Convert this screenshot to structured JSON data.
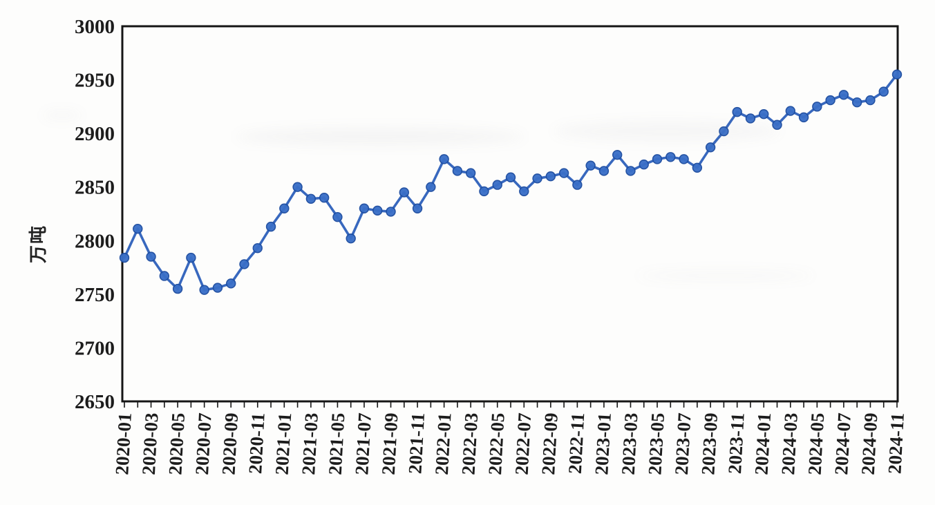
{
  "chart_data": {
    "type": "line",
    "title": "",
    "ylabel": "万吨",
    "xlabel": "",
    "ylim": [
      2650,
      3000
    ],
    "ytick_step": 50,
    "yticks": [
      3000,
      2950,
      2900,
      2850,
      2800,
      2750,
      2700,
      2650
    ],
    "xticks_visible": [
      "2020-01",
      "2020-03",
      "2020-05",
      "2020-07",
      "2020-09",
      "2020-11",
      "2021-01",
      "2021-03",
      "2021-05",
      "2021-07",
      "2021-09",
      "2021-11",
      "2022-01",
      "2022-03",
      "2022-05",
      "2022-07",
      "2022-09",
      "2022-11",
      "2023-01",
      "2023-03",
      "2023-05",
      "2023-07",
      "2023-09",
      "2023-11",
      "2024-01",
      "2024-03",
      "2024-05",
      "2024-07",
      "2024-09",
      "2024-11"
    ],
    "x": [
      "2020-01",
      "2020-02",
      "2020-03",
      "2020-04",
      "2020-05",
      "2020-06",
      "2020-07",
      "2020-08",
      "2020-09",
      "2020-10",
      "2020-11",
      "2020-12",
      "2021-01",
      "2021-02",
      "2021-03",
      "2021-04",
      "2021-05",
      "2021-06",
      "2021-07",
      "2021-08",
      "2021-09",
      "2021-10",
      "2021-11",
      "2021-12",
      "2022-01",
      "2022-02",
      "2022-03",
      "2022-04",
      "2022-05",
      "2022-06",
      "2022-07",
      "2022-08",
      "2022-09",
      "2022-10",
      "2022-11",
      "2022-12",
      "2023-01",
      "2023-02",
      "2023-03",
      "2023-04",
      "2023-05",
      "2023-06",
      "2023-07",
      "2023-08",
      "2023-09",
      "2023-10",
      "2023-11",
      "2023-12",
      "2024-01",
      "2024-02",
      "2024-03",
      "2024-04",
      "2024-05",
      "2024-06",
      "2024-07",
      "2024-08",
      "2024-09",
      "2024-10",
      "2024-11"
    ],
    "values": [
      2784,
      2811,
      2785,
      2767,
      2755,
      2784,
      2754,
      2756,
      2760,
      2778,
      2793,
      2813,
      2830,
      2850,
      2839,
      2840,
      2822,
      2802,
      2830,
      2828,
      2827,
      2845,
      2830,
      2850,
      2876,
      2865,
      2863,
      2846,
      2852,
      2859,
      2846,
      2858,
      2860,
      2863,
      2852,
      2870,
      2865,
      2880,
      2865,
      2871,
      2876,
      2878,
      2876,
      2868,
      2887,
      2902,
      2920,
      2914,
      2918,
      2908,
      2921,
      2915,
      2925,
      2931,
      2936,
      2929,
      2931,
      2939,
      2955
    ],
    "grid": false,
    "legend": "none",
    "line_color": "#2d60ba",
    "marker_fill": "#3a6fc7",
    "marker_stroke": "#1d4da0",
    "axis_color": "#151515",
    "tick_label_color": "#1c1c1c"
  }
}
